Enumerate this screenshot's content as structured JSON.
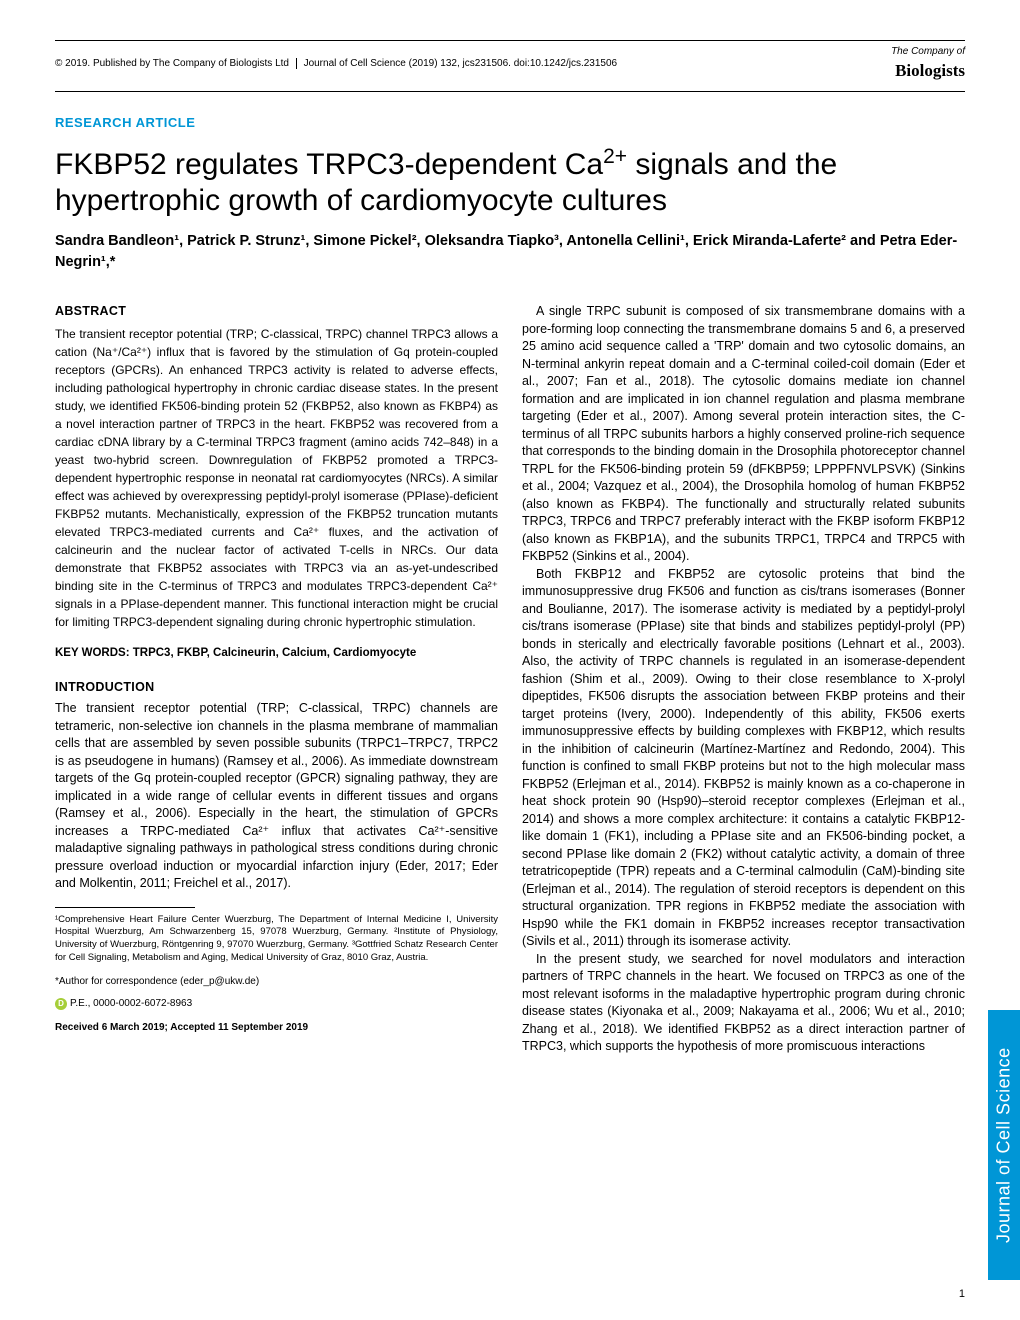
{
  "header": {
    "copyright": "© 2019. Published by The Company of Biologists Ltd",
    "citation": "Journal of Cell Science (2019) 132, jcs231506. doi:10.1242/jcs.231506",
    "logo_top": "The Company of",
    "logo_main": "Biologists"
  },
  "article_type": "RESEARCH ARTICLE",
  "title_pre": "FKBP52 regulates TRPC3-dependent Ca",
  "title_sup": "2+",
  "title_post": " signals and the hypertrophic growth of cardiomyocyte cultures",
  "authors": "Sandra Bandleon¹, Patrick P. Strunz¹, Simone Pickel², Oleksandra Tiapko³, Antonella Cellini¹, Erick Miranda-Laferte² and Petra Eder-Negrin¹,*",
  "abstract_head": "ABSTRACT",
  "abstract": "The transient receptor potential (TRP; C-classical, TRPC) channel TRPC3 allows a cation (Na⁺/Ca²⁺) influx that is favored by the stimulation of Gq protein-coupled receptors (GPCRs). An enhanced TRPC3 activity is related to adverse effects, including pathological hypertrophy in chronic cardiac disease states. In the present study, we identified FK506-binding protein 52 (FKBP52, also known as FKBP4) as a novel interaction partner of TRPC3 in the heart. FKBP52 was recovered from a cardiac cDNA library by a C-terminal TRPC3 fragment (amino acids 742–848) in a yeast two-hybrid screen. Downregulation of FKBP52 promoted a TRPC3-dependent hypertrophic response in neonatal rat cardiomyocytes (NRCs). A similar effect was achieved by overexpressing peptidyl-prolyl isomerase (PPIase)-deficient FKBP52 mutants. Mechanistically, expression of the FKBP52 truncation mutants elevated TRPC3-mediated currents and Ca²⁺ fluxes, and the activation of calcineurin and the nuclear factor of activated T-cells in NRCs. Our data demonstrate that FKBP52 associates with TRPC3 via an as-yet-undescribed binding site in the C-terminus of TRPC3 and modulates TRPC3-dependent Ca²⁺ signals in a PPIase-dependent manner. This functional interaction might be crucial for limiting TRPC3-dependent signaling during chronic hypertrophic stimulation.",
  "keywords": "KEY WORDS: TRPC3, FKBP, Calcineurin, Calcium, Cardiomyocyte",
  "intro_head": "INTRODUCTION",
  "intro_p1": "The transient receptor potential (TRP; C-classical, TRPC) channels are tetrameric, non-selective ion channels in the plasma membrane of mammalian cells that are assembled by seven possible subunits (TRPC1–TRPC7, TRPC2 is as pseudogene in humans) (Ramsey et al., 2006). As immediate downstream targets of the Gq protein-coupled receptor (GPCR) signaling pathway, they are implicated in a wide range of cellular events in different tissues and organs (Ramsey et al., 2006). Especially in the heart, the stimulation of GPCRs increases a TRPC-mediated Ca²⁺ influx that activates Ca²⁺-sensitive maladaptive signaling pathways in pathological stress conditions during chronic pressure overload induction or myocardial infarction injury (Eder, 2017; Eder and Molkentin, 2011; Freichel et al., 2017).",
  "affiliations": "¹Comprehensive Heart Failure Center Wuerzburg, The Department of Internal Medicine I, University Hospital Wuerzburg, Am Schwarzenberg 15, 97078 Wuerzburg, Germany. ²Institute of Physiology, University of Wuerzburg, Röntgenring 9, 97070 Wuerzburg, Germany. ³Gottfried Schatz Research Center for Cell Signaling, Metabolism and Aging, Medical University of Graz, 8010 Graz, Austria.",
  "correspondence": "*Author for correspondence (eder_p@ukw.de)",
  "orcid": "P.E., 0000-0002-6072-8963",
  "received": "Received 6 March 2019; Accepted 11 September 2019",
  "col2_p1": "A single TRPC subunit is composed of six transmembrane domains with a pore-forming loop connecting the transmembrane domains 5 and 6, a preserved 25 amino acid sequence called a 'TRP' domain and two cytosolic domains, an N-terminal ankyrin repeat domain and a C-terminal coiled-coil domain (Eder et al., 2007; Fan et al., 2018). The cytosolic domains mediate ion channel formation and are implicated in ion channel regulation and plasma membrane targeting (Eder et al., 2007). Among several protein interaction sites, the C-terminus of all TRPC subunits harbors a highly conserved proline-rich sequence that corresponds to the binding domain in the Drosophila photoreceptor channel TRPL for the FK506-binding protein 59 (dFKBP59; LPPPFNVLPSVK) (Sinkins et al., 2004; Vazquez et al., 2004), the Drosophila homolog of human FKBP52 (also known as FKBP4). The functionally and structurally related subunits TRPC3, TRPC6 and TRPC7 preferably interact with the FKBP isoform FKBP12 (also known as FKBP1A), and the subunits TRPC1, TRPC4 and TRPC5 with FKBP52 (Sinkins et al., 2004).",
  "col2_p2": "Both FKBP12 and FKBP52 are cytosolic proteins that bind the immunosuppressive drug FK506 and function as cis/trans isomerases (Bonner and Boulianne, 2017). The isomerase activity is mediated by a peptidyl-prolyl cis/trans isomerase (PPIase) site that binds and stabilizes peptidyl-prolyl (PP) bonds in sterically and electrically favorable positions (Lehnart et al., 2003). Also, the activity of TRPC channels is regulated in an isomerase-dependent fashion (Shim et al., 2009). Owing to their close resemblance to X-prolyl dipeptides, FK506 disrupts the association between FKBP proteins and their target proteins (Ivery, 2000). Independently of this ability, FK506 exerts immunosuppressive effects by building complexes with FKBP12, which results in the inhibition of calcineurin (Martínez-Martínez and Redondo, 2004). This function is confined to small FKBP proteins but not to the high molecular mass FKBP52 (Erlejman et al., 2014). FKBP52 is mainly known as a co-chaperone in heat shock protein 90 (Hsp90)–steroid receptor complexes (Erlejman et al., 2014) and shows a more complex architecture: it contains a catalytic FKBP12-like domain 1 (FK1), including a PPIase site and an FK506-binding pocket, a second PPIase like domain 2 (FK2) without catalytic activity, a domain of three tetratricopeptide (TPR) repeats and a C-terminal calmodulin (CaM)-binding site (Erlejman et al., 2014). The regulation of steroid receptors is dependent on this structural organization. TPR regions in FKBP52 mediate the association with Hsp90 while the FK1 domain in FKBP52 increases receptor transactivation (Sivils et al., 2011) through its isomerase activity.",
  "col2_p3": "In the present study, we searched for novel modulators and interaction partners of TRPC channels in the heart. We focused on TRPC3 as one of the most relevant isoforms in the maladaptive hypertrophic program during chronic disease states (Kiyonaka et al., 2009; Nakayama et al., 2006; Wu et al., 2010; Zhang et al., 2018). We identified FKBP52 as a direct interaction partner of TRPC3, which supports the hypothesis of more promiscuous interactions",
  "side_tab": "Journal of Cell Science",
  "page_num": "1",
  "colors": {
    "accent": "#0096d6",
    "orcid": "#a6ce39",
    "text": "#000000",
    "bg": "#ffffff"
  }
}
